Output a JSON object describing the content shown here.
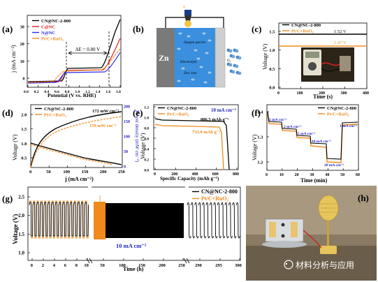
{
  "panels": {
    "a": {
      "letter": "(a)",
      "legend": [
        "CN@NC-2-800",
        "C@NC",
        "N@NC",
        "Pt/C+RuO₂"
      ],
      "ylabel": "j (mA cm⁻²)",
      "xlabel": "Potential (V vs. RHE)",
      "annotation": "ΔE = 0.80 V",
      "xticks": [
        "0.0",
        "0.2",
        "0.4",
        "0.6",
        "0.8",
        "1.0",
        "1.2",
        "1.4",
        "1.6",
        "1.8"
      ],
      "yticks": [
        "30",
        "20",
        "10",
        "0"
      ]
    },
    "b": {
      "letter": "(b)",
      "anode": "Zn",
      "labels": [
        "Oxygen species",
        "Electrolyte",
        "Zinc ions",
        "O₂"
      ]
    },
    "c": {
      "letter": "(c)",
      "legend": [
        "CN@NC-2-800",
        "Pt/C+RuO₂"
      ],
      "v1": "1.52 V",
      "v2": "1.47 V",
      "ylabel": "Voltage (V)",
      "xlabel": "Time (s)",
      "xticks": [
        "0",
        "100",
        "200",
        "300",
        "400"
      ],
      "yticks": [
        "1.5",
        "1.0",
        "0.5",
        "0.0"
      ]
    },
    "d": {
      "letter": "(d)",
      "legend": [
        "CN@NC-2-800",
        "Pt/C+RuO₂"
      ],
      "p1": "172 mW cm⁻²",
      "p2": "159 mW cm⁻²",
      "ylabel": "Voltage (V)",
      "y2label": "Power density (mW cm⁻²)",
      "xlabel": "j (mA cm⁻²)",
      "xticks": [
        "0",
        "50",
        "100",
        "150",
        "200",
        "250"
      ],
      "yticks": [
        "2.0",
        "1.5",
        "1.0",
        "0.5"
      ],
      "y2ticks": [
        "200",
        "150",
        "100",
        "50",
        "0"
      ]
    },
    "e": {
      "letter": "(e)",
      "legend": [
        "CN@NC-2-800",
        "Pt/C+RuO₂"
      ],
      "current": "10 mA cm⁻²",
      "c1": "806.5 mAh g⁻¹",
      "c2": "733.8 mAh g⁻¹",
      "ylabel": "Voltage (V)",
      "xlabel": "Specific Capacity (mAh g⁻¹)",
      "xticks": [
        "0",
        "200",
        "400",
        "600",
        "800"
      ],
      "yticks": [
        "1.2",
        "1.0",
        "0.8",
        "0.6",
        "0.4",
        "0.2",
        "0.0"
      ]
    },
    "f": {
      "letter": "(f)",
      "legend": [
        "CN@NC-2-800",
        "Pt/C+RuO₂"
      ],
      "steps": [
        "1 mA cm⁻²",
        "2 mA cm⁻²",
        "5 mA cm⁻²",
        "10 mA cm⁻²",
        "20 mA cm⁻²",
        "1 mA cm⁻²"
      ],
      "ylabel": "Voltage (V)",
      "xlabel": "Time (min)",
      "xticks": [
        "0",
        "10",
        "20",
        "30",
        "40",
        "50",
        "60"
      ],
      "yticks": [
        "1.4",
        "1.3",
        "1.2"
      ]
    },
    "g": {
      "letter": "(g)",
      "legend": [
        "CN@NC-2-800",
        "Pt/C+RuO₂"
      ],
      "current": "10 mA cm⁻²",
      "ylabel": "Voltage (V)",
      "xlabel": "Time (h)",
      "xticks": [
        "0",
        "2",
        "4",
        "6",
        "8",
        "10",
        "50",
        "100",
        "150",
        "200",
        "250",
        "290",
        "295",
        "300"
      ],
      "yticks": [
        "2.5",
        "2.0",
        "1.5",
        "1.0"
      ]
    },
    "h": {
      "letter": "(h)"
    }
  },
  "watermark": "材料分析与应用",
  "colors": {
    "black": "#000000",
    "orange": "#f08a1c",
    "red": "#e02020",
    "blue": "#2a2aee",
    "blueLabel": "#2323c8"
  }
}
